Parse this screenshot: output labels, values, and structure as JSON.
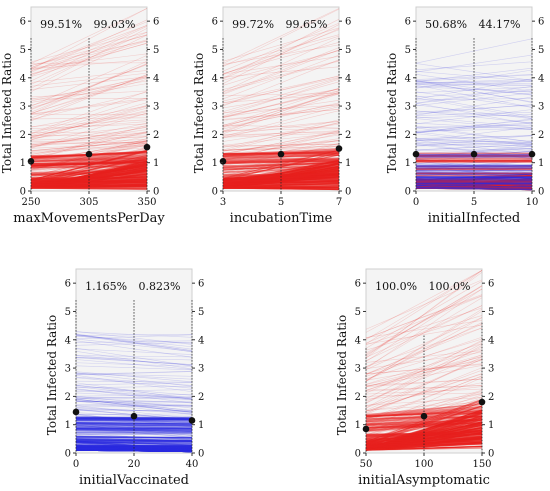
{
  "chart_data": [
    {
      "type": "line",
      "ylabel": "Total Infected Ratio",
      "xlabel": "maxMovementsPerDay",
      "x_ticks": [
        "250",
        "305",
        "350"
      ],
      "y_ticks": [
        "0",
        "1",
        "2",
        "3",
        "4",
        "5",
        "6"
      ],
      "ylim": [
        0,
        6.5
      ],
      "annotations": [
        "99.51%",
        "99.03%"
      ],
      "mean_points": [
        1.05,
        1.3,
        1.55
      ],
      "color_low": "#e8201e",
      "color_high": "#e8201e"
    },
    {
      "type": "line",
      "ylabel": "Total Infected Ratio",
      "xlabel": "incubationTime",
      "x_ticks": [
        "3",
        "5",
        "7"
      ],
      "y_ticks": [
        "0",
        "1",
        "2",
        "3",
        "4",
        "5",
        "6"
      ],
      "ylim": [
        0,
        6.5
      ],
      "annotations": [
        "99.72%",
        "99.65%"
      ],
      "mean_points": [
        1.05,
        1.3,
        1.5
      ],
      "color_low": "#e8201e",
      "color_high": "#e8201e"
    },
    {
      "type": "line",
      "ylabel": "Total Infected Ratio",
      "xlabel": "initialInfected",
      "x_ticks": [
        "0",
        "5",
        "10"
      ],
      "y_ticks": [
        "0",
        "1",
        "2",
        "3",
        "4",
        "5",
        "6"
      ],
      "ylim": [
        0,
        6.5
      ],
      "annotations": [
        "50.68%",
        "44.17%"
      ],
      "mean_points": [
        1.3,
        1.3,
        1.3
      ],
      "color_low": "#e8201e",
      "color_high": "#2a2ae0"
    },
    {
      "type": "line",
      "ylabel": "Total Infected Ratio",
      "xlabel": "initialVaccinated",
      "x_ticks": [
        "0",
        "20",
        "40"
      ],
      "y_ticks": [
        "0",
        "1",
        "2",
        "3",
        "4",
        "5",
        "6"
      ],
      "ylim": [
        0,
        6.5
      ],
      "annotations": [
        "1.165%",
        "0.823%"
      ],
      "mean_points": [
        1.45,
        1.3,
        1.15
      ],
      "color_low": "#2a2ae0",
      "color_high": "#2a2ae0"
    },
    {
      "type": "line",
      "ylabel": "Total Infected Ratio",
      "xlabel": "initialAsymptomatic",
      "x_ticks": [
        "50",
        "100",
        "150"
      ],
      "y_ticks": [
        "0",
        "1",
        "2",
        "3",
        "4",
        "5",
        "6"
      ],
      "ylim": [
        0,
        6.5
      ],
      "annotations": [
        "100.0%",
        "100.0%"
      ],
      "mean_points": [
        0.85,
        1.3,
        1.8
      ],
      "color_low": "#e8201e",
      "color_high": "#e8201e"
    }
  ]
}
